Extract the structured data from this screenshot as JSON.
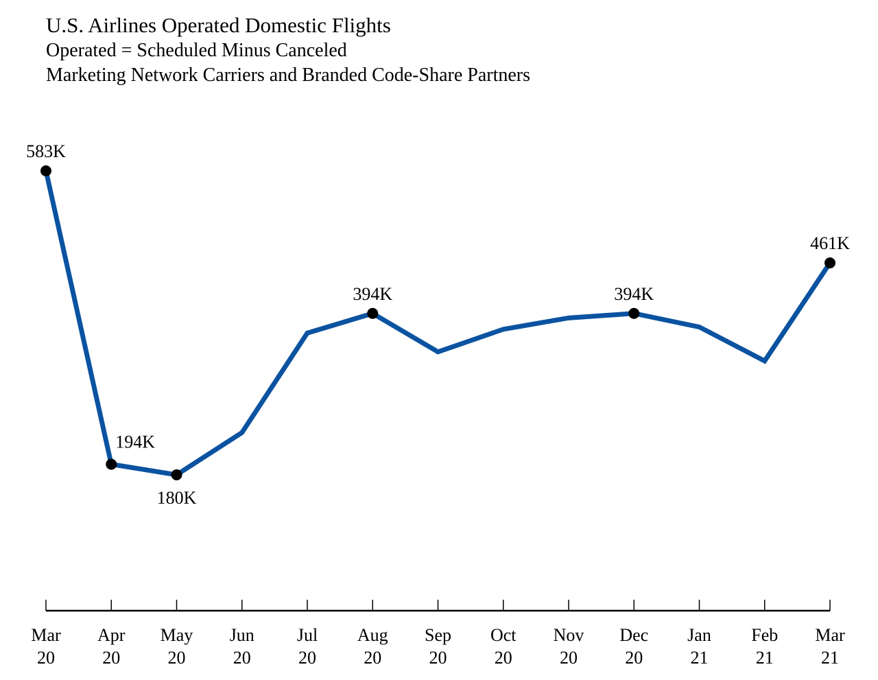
{
  "chart_data": {
    "type": "line",
    "title": "U.S. Airlines Operated Domestic Flights",
    "subtitles": [
      "Operated = Scheduled Minus Canceled",
      "Marketing Network Carriers and Branded Code-Share Partners"
    ],
    "xlabel": "",
    "ylabel": "",
    "categories": [
      [
        "Mar",
        "20"
      ],
      [
        "Apr",
        "20"
      ],
      [
        "May",
        "20"
      ],
      [
        "Jun",
        "20"
      ],
      [
        "Jul",
        "20"
      ],
      [
        "Aug",
        "20"
      ],
      [
        "Sep",
        "20"
      ],
      [
        "Oct",
        "20"
      ],
      [
        "Nov",
        "20"
      ],
      [
        "Dec",
        "20"
      ],
      [
        "Jan",
        "21"
      ],
      [
        "Feb",
        "21"
      ],
      [
        "Mar",
        "21"
      ]
    ],
    "series": [
      {
        "name": "Operated Domestic Flights (thousands)",
        "color": "#0b53a1",
        "values": [
          583,
          194,
          180,
          236,
          368,
          394,
          343,
          373,
          388,
          394,
          376,
          331,
          461
        ]
      }
    ],
    "annotations": [
      {
        "index": 0,
        "text": "583K",
        "placement": "above"
      },
      {
        "index": 1,
        "text": "194K",
        "placement": "above-right"
      },
      {
        "index": 2,
        "text": "180K",
        "placement": "below"
      },
      {
        "index": 5,
        "text": "394K",
        "placement": "above"
      },
      {
        "index": 9,
        "text": "394K",
        "placement": "above"
      },
      {
        "index": 12,
        "text": "461K",
        "placement": "above"
      }
    ],
    "marker_color": "#000000",
    "ylim": [
      0,
      700
    ],
    "grid": false,
    "legend": "none",
    "y_axis_visible": false
  }
}
